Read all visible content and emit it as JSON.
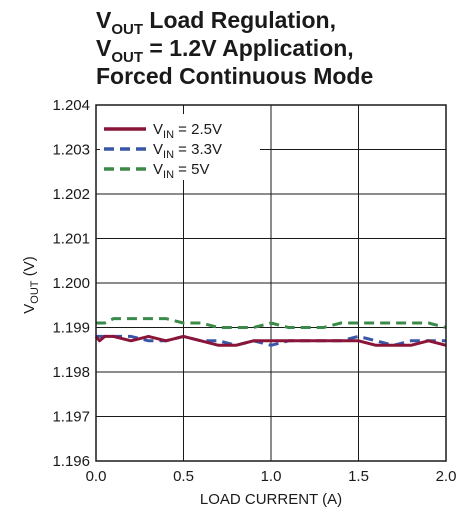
{
  "chart_data": {
    "type": "line",
    "title": {
      "line1": {
        "main": "V",
        "sub": "OUT",
        "rest": " Load Regulation,"
      },
      "line2": {
        "main": "V",
        "sub": "OUT",
        "rest": " = 1.2V Application,"
      },
      "line3": "Forced Continuous Mode"
    },
    "xlabel": "LOAD CURRENT (A)",
    "ylabel": {
      "main": "V",
      "sub": "OUT",
      "rest": " (V)"
    },
    "xlim": [
      0,
      2.0
    ],
    "ylim": [
      1.196,
      1.204
    ],
    "x_ticks": [
      "0.0",
      "0.5",
      "1.0",
      "1.5",
      "2.0"
    ],
    "y_ticks": [
      "1.196",
      "1.197",
      "1.198",
      "1.199",
      "1.200",
      "1.201",
      "1.202",
      "1.203",
      "1.204"
    ],
    "grid": true,
    "legend_position": "top-left",
    "series": [
      {
        "name": {
          "main": "V",
          "sub": "IN",
          "rest": " = 2.5V"
        },
        "color": "#8a1538",
        "style": "solid",
        "x": [
          0.0,
          0.02,
          0.05,
          0.1,
          0.2,
          0.3,
          0.4,
          0.5,
          0.6,
          0.7,
          0.8,
          0.9,
          1.0,
          1.1,
          1.2,
          1.3,
          1.4,
          1.5,
          1.6,
          1.7,
          1.8,
          1.9,
          2.0
        ],
        "y": [
          1.1988,
          1.1987,
          1.1988,
          1.1988,
          1.1987,
          1.1988,
          1.1987,
          1.1988,
          1.1987,
          1.1986,
          1.1986,
          1.1987,
          1.1987,
          1.1987,
          1.1987,
          1.1987,
          1.1987,
          1.1987,
          1.1986,
          1.1986,
          1.1986,
          1.1987,
          1.1986
        ]
      },
      {
        "name": {
          "main": "V",
          "sub": "IN",
          "rest": " = 3.3V"
        },
        "color": "#3a57a7",
        "style": "dashed",
        "x": [
          0.0,
          0.05,
          0.1,
          0.2,
          0.3,
          0.4,
          0.5,
          0.6,
          0.7,
          0.8,
          0.9,
          1.0,
          1.1,
          1.2,
          1.3,
          1.4,
          1.5,
          1.6,
          1.7,
          1.8,
          1.9,
          2.0
        ],
        "y": [
          1.1988,
          1.1988,
          1.1988,
          1.1988,
          1.1987,
          1.1987,
          1.1988,
          1.1987,
          1.1987,
          1.1986,
          1.1987,
          1.1986,
          1.1987,
          1.1987,
          1.1987,
          1.1987,
          1.1988,
          1.1987,
          1.1986,
          1.1987,
          1.1987,
          1.1987
        ]
      },
      {
        "name": {
          "main": "V",
          "sub": "IN",
          "rest": " = 5V"
        },
        "color": "#3c8a4a",
        "style": "dashed",
        "x": [
          0.0,
          0.05,
          0.1,
          0.2,
          0.3,
          0.4,
          0.5,
          0.6,
          0.7,
          0.8,
          0.9,
          1.0,
          1.1,
          1.2,
          1.3,
          1.4,
          1.5,
          1.6,
          1.7,
          1.8,
          1.9,
          2.0
        ],
        "y": [
          1.1991,
          1.1991,
          1.1992,
          1.1992,
          1.1992,
          1.1992,
          1.1991,
          1.1991,
          1.199,
          1.199,
          1.199,
          1.1991,
          1.199,
          1.199,
          1.199,
          1.1991,
          1.1991,
          1.1991,
          1.1991,
          1.1991,
          1.1991,
          1.199
        ]
      }
    ]
  }
}
